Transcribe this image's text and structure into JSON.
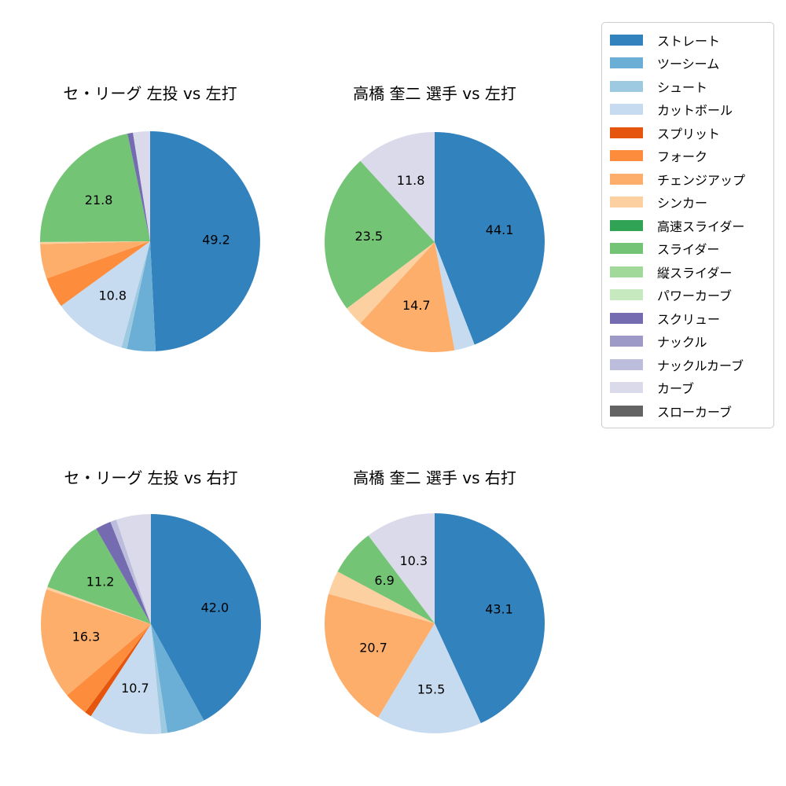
{
  "page": {
    "background": "#ffffff"
  },
  "palette": {
    "ストレート": "#3182bd",
    "ツーシーム": "#6baed6",
    "シュート": "#9ecae1",
    "カットボール": "#c6dbef",
    "スプリット": "#e6550d",
    "フォーク": "#fd8d3c",
    "チェンジアップ": "#fdae6b",
    "シンカー": "#fdd0a2",
    "高速スライダー": "#31a354",
    "スライダー": "#74c476",
    "縦スライダー": "#a1d99b",
    "パワーカーブ": "#c7e9c0",
    "スクリュー": "#756bb1",
    "ナックル": "#9e9ac8",
    "ナックルカーブ": "#bcbddc",
    "カーブ": "#dadaeb",
    "スローカーブ": "#636363"
  },
  "legend": {
    "position": "upper right",
    "items": [
      "ストレート",
      "ツーシーム",
      "シュート",
      "カットボール",
      "スプリット",
      "フォーク",
      "チェンジアップ",
      "シンカー",
      "高速スライダー",
      "スライダー",
      "縦スライダー",
      "パワーカーブ",
      "スクリュー",
      "ナックル",
      "ナックルカーブ",
      "カーブ",
      "スローカーブ"
    ]
  },
  "chart_data": [
    {
      "type": "pie",
      "title": "セ・リーグ 左投 vs 左打",
      "start_angle_deg": 90,
      "direction": "clockwise",
      "label_min_pct": 6,
      "slices": [
        {
          "label": "ストレート",
          "value": 49.2
        },
        {
          "label": "ツーシーム",
          "value": 4.2
        },
        {
          "label": "シュート",
          "value": 0.8
        },
        {
          "label": "カットボール",
          "value": 10.8
        },
        {
          "label": "フォーク",
          "value": 4.5
        },
        {
          "label": "チェンジアップ",
          "value": 5.1
        },
        {
          "label": "シンカー",
          "value": 0.3
        },
        {
          "label": "スライダー",
          "value": 21.8
        },
        {
          "label": "スクリュー",
          "value": 0.8
        },
        {
          "label": "カーブ",
          "value": 2.5
        }
      ]
    },
    {
      "type": "pie",
      "title": "高橋 奎二 選手 vs 左打",
      "start_angle_deg": 90,
      "direction": "clockwise",
      "label_min_pct": 6,
      "slices": [
        {
          "label": "ストレート",
          "value": 44.1
        },
        {
          "label": "カットボール",
          "value": 3.0
        },
        {
          "label": "チェンジアップ",
          "value": 14.7
        },
        {
          "label": "シンカー",
          "value": 2.9
        },
        {
          "label": "スライダー",
          "value": 23.5
        },
        {
          "label": "カーブ",
          "value": 11.8
        }
      ]
    },
    {
      "type": "pie",
      "title": "セ・リーグ 左投 vs 右打",
      "start_angle_deg": 90,
      "direction": "clockwise",
      "label_min_pct": 6,
      "slices": [
        {
          "label": "ストレート",
          "value": 42.0
        },
        {
          "label": "ツーシーム",
          "value": 5.6
        },
        {
          "label": "シュート",
          "value": 0.9
        },
        {
          "label": "カットボール",
          "value": 10.7
        },
        {
          "label": "スプリット",
          "value": 1.0
        },
        {
          "label": "フォーク",
          "value": 3.6
        },
        {
          "label": "チェンジアップ",
          "value": 16.3
        },
        {
          "label": "シンカー",
          "value": 0.4
        },
        {
          "label": "スライダー",
          "value": 11.2
        },
        {
          "label": "スクリュー",
          "value": 2.3
        },
        {
          "label": "ナックルカーブ",
          "value": 0.9
        },
        {
          "label": "カーブ",
          "value": 5.1
        }
      ]
    },
    {
      "type": "pie",
      "title": "高橋 奎二 選手 vs 右打",
      "start_angle_deg": 90,
      "direction": "clockwise",
      "label_min_pct": 6,
      "slices": [
        {
          "label": "ストレート",
          "value": 43.1
        },
        {
          "label": "カットボール",
          "value": 15.5
        },
        {
          "label": "チェンジアップ",
          "value": 20.7
        },
        {
          "label": "シンカー",
          "value": 3.5
        },
        {
          "label": "スライダー",
          "value": 6.9
        },
        {
          "label": "カーブ",
          "value": 10.3
        }
      ]
    }
  ]
}
